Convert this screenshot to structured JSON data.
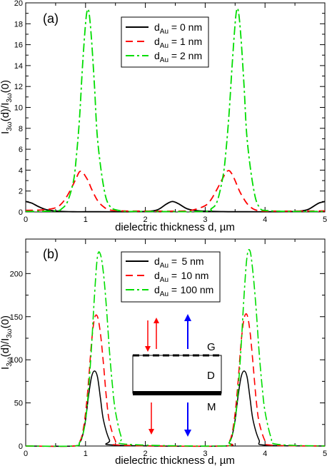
{
  "chart_data": [
    {
      "type": "line",
      "panel_label": "(a)",
      "xlabel": "dielectric thickness d, µm",
      "ylabel_parts": [
        "I",
        "3ω",
        "(d)/I",
        "3ω",
        "(0)"
      ],
      "xlim": [
        0,
        5
      ],
      "ylim": [
        0,
        20
      ],
      "xticks": [
        0,
        1,
        2,
        3,
        4,
        5
      ],
      "yticks": [
        0,
        2,
        4,
        6,
        8,
        10,
        12,
        14,
        16,
        18,
        20
      ],
      "grid": false,
      "legend_position": "top-center",
      "series": [
        {
          "name": "0 nm",
          "legend_prefix": "d",
          "legend_sub": "Au",
          "color": "#000000",
          "dash": "solid",
          "x": [
            0,
            0.1,
            0.2,
            0.3,
            0.4,
            0.6,
            0.8,
            1.0,
            1.2,
            1.6,
            2.0,
            2.2,
            2.35,
            2.45,
            2.55,
            2.7,
            2.9,
            3.3,
            3.7,
            4.1,
            4.5,
            4.7,
            4.8,
            4.9,
            5.0
          ],
          "y": [
            1.0,
            0.85,
            0.55,
            0.3,
            0.15,
            0.05,
            0.02,
            0.02,
            0.02,
            0.02,
            0.05,
            0.2,
            0.75,
            1.0,
            0.8,
            0.3,
            0.1,
            0.03,
            0.02,
            0.02,
            0.05,
            0.2,
            0.5,
            0.85,
            1.0
          ]
        },
        {
          "name": "1 nm",
          "legend_prefix": "d",
          "legend_sub": "Au",
          "color": "#ff0000",
          "dash": "10,6",
          "x": [
            0,
            0.3,
            0.5,
            0.6,
            0.7,
            0.8,
            0.85,
            0.9,
            0.95,
            1.0,
            1.05,
            1.1,
            1.2,
            1.3,
            1.4,
            1.6,
            2.0,
            2.6,
            2.8,
            3.0,
            3.1,
            3.2,
            3.3,
            3.35,
            3.4,
            3.45,
            3.5,
            3.55,
            3.6,
            3.7,
            3.8,
            3.9,
            4.1,
            4.5,
            5.0
          ],
          "y": [
            0.15,
            0.2,
            0.4,
            0.8,
            1.6,
            2.7,
            3.3,
            3.85,
            3.8,
            3.4,
            2.9,
            2.2,
            1.1,
            0.5,
            0.2,
            0.1,
            0.08,
            0.08,
            0.2,
            0.6,
            1.2,
            2.2,
            3.3,
            3.8,
            3.95,
            3.6,
            3.0,
            2.3,
            1.7,
            0.8,
            0.3,
            0.12,
            0.08,
            0.08,
            0.1
          ]
        },
        {
          "name": "2 nm",
          "legend_prefix": "d",
          "legend_sub": "Au",
          "color": "#00dd00",
          "dash": "12,4,3,4",
          "x": [
            0,
            0.5,
            0.6,
            0.7,
            0.8,
            0.85,
            0.9,
            0.95,
            1.0,
            1.03,
            1.06,
            1.1,
            1.15,
            1.2,
            1.3,
            1.4,
            1.6,
            2.0,
            3.0,
            3.1,
            3.2,
            3.3,
            3.35,
            3.4,
            3.45,
            3.5,
            3.53,
            3.56,
            3.6,
            3.65,
            3.7,
            3.8,
            3.9,
            4.1,
            5.0
          ],
          "y": [
            0.05,
            0.1,
            0.3,
            1.0,
            3.0,
            5.5,
            9.0,
            14.0,
            18.0,
            19.3,
            19.0,
            16.5,
            12.0,
            7.0,
            2.5,
            0.6,
            0.1,
            0.05,
            0.05,
            0.3,
            1.0,
            3.5,
            6.0,
            9.5,
            14.0,
            18.0,
            19.4,
            19.0,
            16.5,
            12.0,
            7.0,
            2.5,
            0.5,
            0.1,
            0.05
          ]
        }
      ]
    },
    {
      "type": "line",
      "panel_label": "(b)",
      "xlabel": "dielectric thickness d, µm",
      "ylabel_parts": [
        "I",
        "3ω",
        "(d)/I",
        "3ω",
        "(0)"
      ],
      "xlim": [
        0,
        5
      ],
      "ylim": [
        0,
        240
      ],
      "xticks": [
        0,
        1,
        2,
        3,
        4,
        5
      ],
      "yticks": [
        0,
        50,
        100,
        150,
        200
      ],
      "grid": false,
      "legend_position": "top-center",
      "series": [
        {
          "name": "5 nm",
          "legend_prefix": "d",
          "legend_sub": "Au",
          "color": "#000000",
          "dash": "solid",
          "x": [
            0,
            0.8,
            0.9,
            0.95,
            1.0,
            1.05,
            1.1,
            1.15,
            1.2,
            1.25,
            1.3,
            1.4,
            1.5,
            3.3,
            3.4,
            3.45,
            3.5,
            3.55,
            3.6,
            3.65,
            3.7,
            3.75,
            3.8,
            3.9,
            4.0,
            5.0
          ],
          "y": [
            0,
            0,
            4,
            12,
            30,
            58,
            80,
            87,
            80,
            55,
            30,
            7,
            1,
            0,
            4,
            12,
            30,
            58,
            80,
            87,
            80,
            55,
            30,
            7,
            1,
            0
          ],
          "lw": 1.5
        },
        {
          "name": "10 nm",
          "legend_prefix": "d",
          "legend_sub": "Au",
          "color": "#ff0000",
          "dash": "10,6",
          "x": [
            0,
            0.8,
            0.9,
            0.95,
            1.0,
            1.05,
            1.1,
            1.15,
            1.2,
            1.25,
            1.3,
            1.35,
            1.4,
            1.5,
            1.6,
            3.3,
            3.4,
            3.45,
            3.5,
            3.55,
            3.6,
            3.65,
            3.7,
            3.75,
            3.8,
            3.85,
            3.9,
            4.0,
            4.1,
            5.0
          ],
          "y": [
            0,
            0,
            5,
            15,
            38,
            75,
            120,
            148,
            150,
            130,
            95,
            55,
            28,
            6,
            1,
            0,
            5,
            15,
            38,
            75,
            120,
            148,
            152,
            132,
            95,
            55,
            28,
            6,
            1,
            0
          ],
          "lw": 1.6
        },
        {
          "name": "100 nm",
          "legend_prefix": "d",
          "legend_sub": "Au",
          "color": "#00dd00",
          "dash": "12,4,3,4",
          "x": [
            0,
            0.8,
            0.9,
            0.95,
            1.0,
            1.05,
            1.1,
            1.15,
            1.2,
            1.25,
            1.3,
            1.35,
            1.4,
            1.45,
            1.5,
            1.6,
            1.7,
            3.3,
            3.4,
            3.45,
            3.5,
            3.55,
            3.6,
            3.65,
            3.7,
            3.75,
            3.8,
            3.85,
            3.9,
            3.95,
            4.0,
            4.1,
            4.2,
            5.0
          ],
          "y": [
            0,
            0,
            4,
            12,
            30,
            65,
            115,
            175,
            220,
            222,
            200,
            160,
            110,
            70,
            40,
            10,
            2,
            0,
            4,
            12,
            30,
            65,
            115,
            175,
            220,
            226,
            200,
            160,
            110,
            70,
            40,
            10,
            2,
            0
          ],
          "lw": 1.6
        }
      ],
      "inset": {
        "layer_labels": [
          "G",
          "D",
          "M"
        ]
      }
    }
  ]
}
